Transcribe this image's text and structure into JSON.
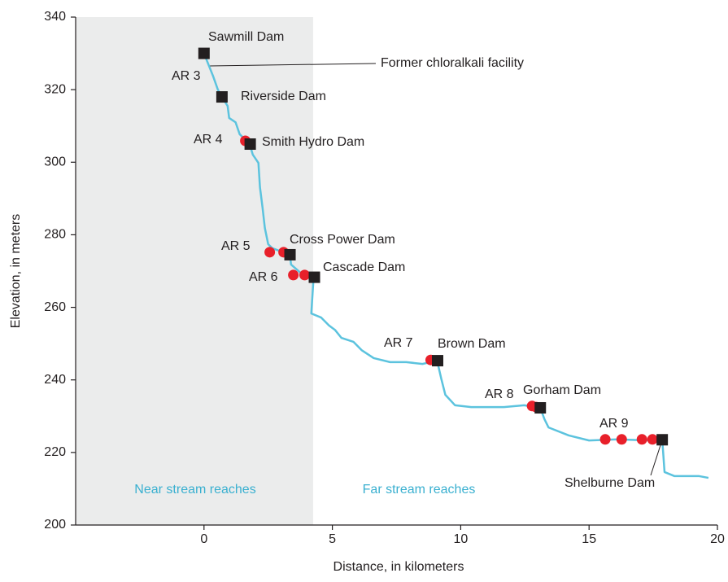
{
  "chart_data": {
    "type": "line",
    "xlabel": "Distance, in kilometers",
    "ylabel": "Elevation, in meters",
    "xlim": [
      -5,
      20
    ],
    "xticks": [
      0,
      5,
      10,
      15,
      20
    ],
    "ylim": [
      200,
      340
    ],
    "yticks": [
      200,
      220,
      240,
      260,
      280,
      300,
      320,
      340
    ],
    "shaded_region": {
      "xlim": [
        -5,
        4.25
      ],
      "color": "#ebecec"
    },
    "region_labels": {
      "color": "#3ab0d0",
      "texts": [
        "Near stream reaches",
        "Far stream reaches"
      ]
    },
    "profile": {
      "color": "#5cc3de",
      "x": [
        0,
        0.35,
        0.54,
        0.7,
        0.92,
        0.98,
        1.23,
        1.39,
        1.77,
        1.9,
        2.12,
        2.18,
        2.28,
        2.37,
        2.5,
        2.66,
        3.35,
        3.39,
        3.83,
        4.27,
        4.18,
        4.56,
        4.87,
        5.1,
        5.35,
        5.82,
        6.14,
        6.61,
        7.25,
        7.88,
        8.51,
        9.08,
        9.24,
        9.4,
        9.78,
        10.41,
        11.68,
        12.47,
        13.1,
        13.26,
        13.42,
        14.21,
        15,
        16.11,
        17.37,
        17.85,
        17.94,
        18.32,
        19.27,
        19.65
      ],
      "y": [
        330,
        323.8,
        320,
        318,
        315.5,
        312.2,
        311,
        307.7,
        305.2,
        302.1,
        299.8,
        293.1,
        287.5,
        281.9,
        277.4,
        276.3,
        274.5,
        271.8,
        269.1,
        268.4,
        258.3,
        257.2,
        255,
        253.8,
        251.6,
        250.5,
        248.2,
        246,
        244.9,
        244.9,
        244.4,
        245.3,
        240.4,
        235.9,
        233,
        232.5,
        232.5,
        233,
        232.3,
        229.2,
        226.9,
        224.7,
        223.3,
        223.6,
        223.3,
        223.6,
        214.6,
        213.5,
        213.5,
        213
      ]
    },
    "dams": {
      "color": "#231f20",
      "names": [
        "Sawmill Dam",
        "Riverside Dam",
        "Smith Hydro Dam",
        "Cross Power Dam",
        "Cascade Dam",
        "Brown Dam",
        "Gorham Dam",
        "Shelburne Dam"
      ],
      "x": [
        0,
        0.7,
        1.8,
        3.35,
        4.3,
        9.1,
        13.1,
        17.85
      ],
      "y": [
        330,
        318,
        305,
        274.5,
        268.3,
        245.3,
        232.3,
        223.5
      ]
    },
    "sites": {
      "color": "#e8202a",
      "x": [
        1.61,
        2.56,
        3.1,
        3.48,
        3.92,
        8.83,
        12.78,
        12.94,
        15.63,
        16.27,
        17.06,
        17.47
      ],
      "y": [
        305.9,
        275.2,
        275.2,
        268.9,
        268.9,
        245.5,
        232.8,
        232.5,
        223.6,
        223.6,
        223.6,
        223.6
      ]
    },
    "site_labels": [
      "AR 3",
      "AR 4",
      "AR 5",
      "AR 6",
      "AR 7",
      "AR 8",
      "AR 9"
    ],
    "annotation": "Former chloralkali facility"
  }
}
